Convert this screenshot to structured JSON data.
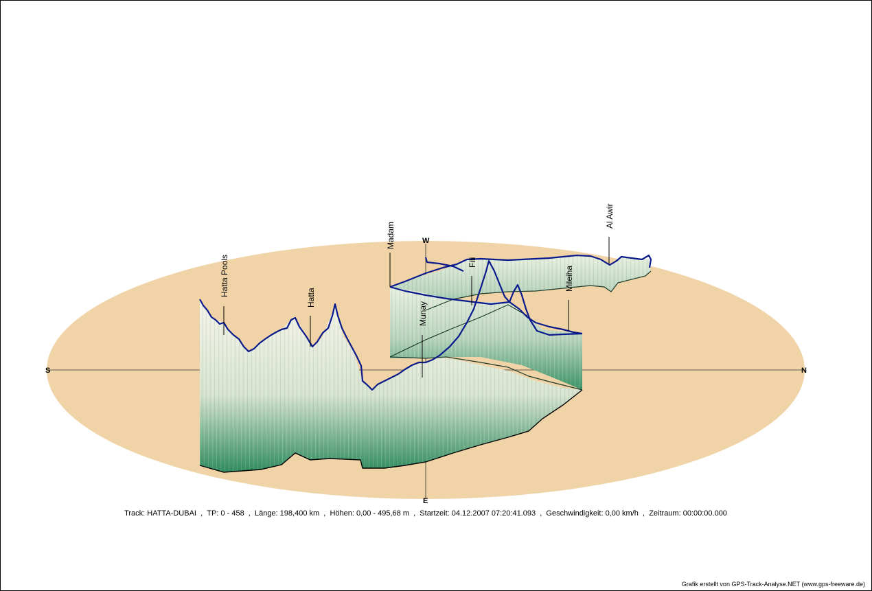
{
  "compass": {
    "north": "N",
    "south": "S",
    "east": "E",
    "west": "W"
  },
  "places": [
    "Hatta Pools",
    "Hatta",
    "Madam",
    "Munay",
    "Fili",
    "Mileiha",
    "Al Awir"
  ],
  "info": {
    "track": "Track: HATTA-DUBAI",
    "tp": "TP: 0 - 458",
    "length": "Länge: 198,400 km",
    "heights": "Höhen: 0,00 - 495,68 m",
    "start": "Startzeit: 04.12.2007 07:20:41.093",
    "speed": "Geschwindigkeit: 0,00 km/h",
    "period": "Zeitraum: 00:00:00.000"
  },
  "credit": "Grafik erstellt von GPS-Track-Analyse.NET (www.gps-freeware.de)",
  "colors": {
    "ground": "#f0d3a6",
    "track": "#0a1a8c",
    "base": "#000000",
    "curtain_dark": "#2f8b5e",
    "curtain_light": "#f4f1e6"
  }
}
